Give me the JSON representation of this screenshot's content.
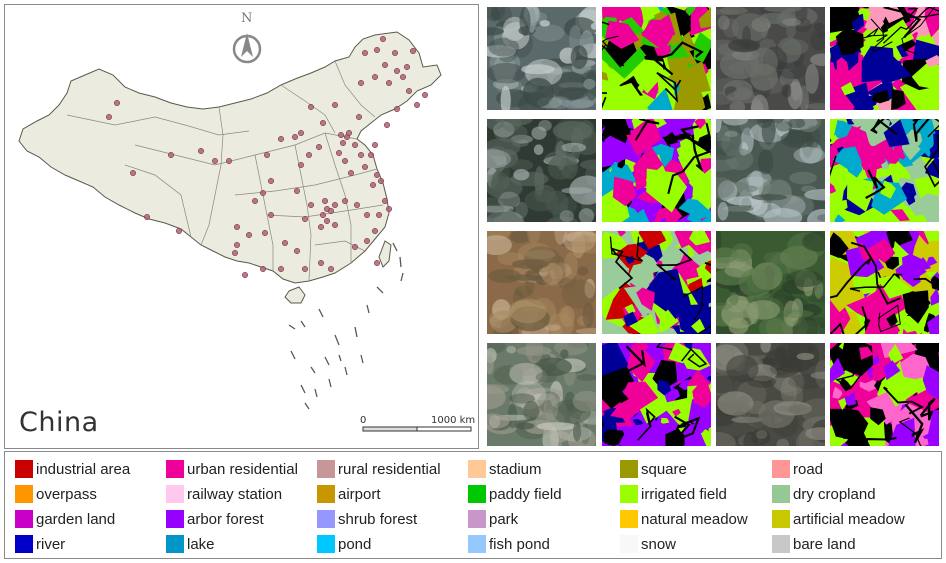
{
  "map": {
    "title": "China",
    "north_label": "N",
    "scale_bar": {
      "start_label": "0",
      "end_label": "1000 km"
    },
    "land_color": "#ebebe0",
    "boundary_color": "#5a5a4a",
    "sample_point_color": "#b06070"
  },
  "image_grid": {
    "rows": 4,
    "columns": 4,
    "tiles": [
      {
        "kind": "satellite",
        "palette": [
          "#5a6a6a",
          "#8a9a9a",
          "#c8d0d0",
          "#3c4a46"
        ]
      },
      {
        "kind": "classification",
        "palette": [
          "#99ff00",
          "#22cc00",
          "#00aacc",
          "#9a9a00",
          "#ee0099",
          "#000000"
        ]
      },
      {
        "kind": "satellite",
        "palette": [
          "#4a4a48",
          "#6a6e68",
          "#8a8c88",
          "#3a3c3c"
        ]
      },
      {
        "kind": "classification",
        "palette": [
          "#ee0099",
          "#000099",
          "#99ff00",
          "#ff99bb",
          "#000000"
        ]
      },
      {
        "kind": "satellite",
        "palette": [
          "#2e3a32",
          "#4a5a50",
          "#a8b0b0",
          "#5c6a62"
        ]
      },
      {
        "kind": "classification",
        "palette": [
          "#9900ff",
          "#99ff00",
          "#000000",
          "#00aacc",
          "#ee0099"
        ]
      },
      {
        "kind": "satellite",
        "palette": [
          "#4a5a52",
          "#6a7a72",
          "#b8c4c8",
          "#3a4842"
        ]
      },
      {
        "kind": "classification",
        "palette": [
          "#99ff00",
          "#00aacc",
          "#99cc99",
          "#000099",
          "#ee0099"
        ]
      },
      {
        "kind": "satellite",
        "palette": [
          "#8a6a48",
          "#a88a60",
          "#6a5a40",
          "#c8b090"
        ]
      },
      {
        "kind": "classification",
        "palette": [
          "#99cc99",
          "#ee0099",
          "#000099",
          "#99ff00",
          "#cc0000"
        ]
      },
      {
        "kind": "satellite",
        "palette": [
          "#3a5a32",
          "#5a7a4a",
          "#2a4028",
          "#8a9a70"
        ]
      },
      {
        "kind": "classification",
        "palette": [
          "#99ff00",
          "#9900ff",
          "#000000",
          "#cccc00",
          "#ee0099"
        ]
      },
      {
        "kind": "satellite",
        "palette": [
          "#6a7a6a",
          "#9a9a8a",
          "#c8c8c0",
          "#4a5a4a"
        ]
      },
      {
        "kind": "classification",
        "palette": [
          "#9900ff",
          "#ee0099",
          "#99ff00",
          "#000099",
          "#000000"
        ]
      },
      {
        "kind": "satellite",
        "palette": [
          "#4a4a44",
          "#6a6a60",
          "#8a8a80",
          "#3a3a36"
        ]
      },
      {
        "kind": "classification",
        "palette": [
          "#ee0099",
          "#ff66cc",
          "#000000",
          "#99ff00",
          "#9900ff"
        ]
      }
    ]
  },
  "legend": {
    "items": [
      {
        "label": "industrial area",
        "color": "#c80000"
      },
      {
        "label": "urban residential",
        "color": "#ee0099"
      },
      {
        "label": "rural residential",
        "color": "#c89696"
      },
      {
        "label": "stadium",
        "color": "#ffc896"
      },
      {
        "label": "square",
        "color": "#9a9a00"
      },
      {
        "label": "road",
        "color": "#ff9696"
      },
      {
        "label": "overpass",
        "color": "#ff9600"
      },
      {
        "label": "railway station",
        "color": "#ffc8ee"
      },
      {
        "label": "airport",
        "color": "#c89600"
      },
      {
        "label": "paddy field",
        "color": "#00c800"
      },
      {
        "label": "irrigated field",
        "color": "#99ff00"
      },
      {
        "label": "dry cropland",
        "color": "#96c896"
      },
      {
        "label": "garden land",
        "color": "#c800c8"
      },
      {
        "label": "arbor forest",
        "color": "#9600ff"
      },
      {
        "label": "shrub forest",
        "color": "#9696ff"
      },
      {
        "label": "park",
        "color": "#c896c8"
      },
      {
        "label": "natural meadow",
        "color": "#ffc800"
      },
      {
        "label": "artificial meadow",
        "color": "#c8c800"
      },
      {
        "label": "river",
        "color": "#0000c8"
      },
      {
        "label": "lake",
        "color": "#0096c8"
      },
      {
        "label": "pond",
        "color": "#00c8ff"
      },
      {
        "label": "fish pond",
        "color": "#96c8ff"
      },
      {
        "label": "snow",
        "color": "#f8f8f8"
      },
      {
        "label": "bare land",
        "color": "#c8c8c8"
      }
    ]
  }
}
